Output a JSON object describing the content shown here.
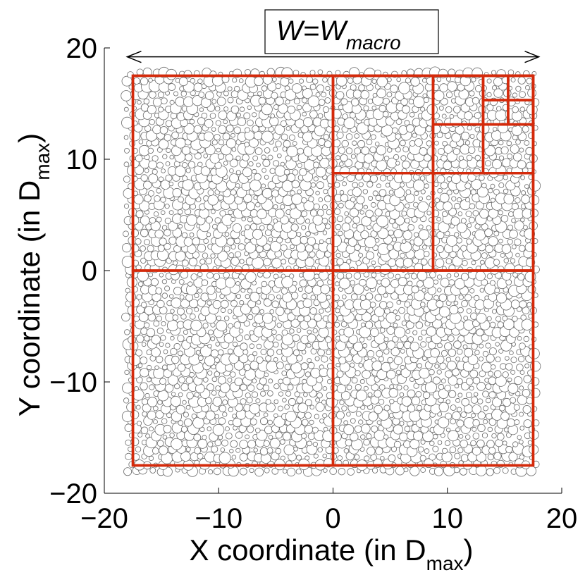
{
  "chart_data": {
    "type": "scatter",
    "description_note": "",
    "xlabel_main": "X coordinate (in D",
    "xlabel_sub": "max",
    "xlabel_close": ")",
    "ylabel_main": "Y coordinate (in D",
    "ylabel_sub": "max",
    "ylabel_close": ")",
    "xlim": [
      -20,
      20
    ],
    "ylim": [
      -20,
      20
    ],
    "xticks": [
      -20,
      -10,
      0,
      10,
      20
    ],
    "yticks": [
      -20,
      -10,
      0,
      10,
      20
    ],
    "xtick_labels": [
      "−20",
      "−10",
      "0",
      "10",
      "20"
    ],
    "ytick_labels": [
      "−20",
      "−10",
      "0",
      "10",
      "20"
    ],
    "annotation": {
      "label_main": "W=W",
      "label_sub": "macro",
      "arrow_from_x": -18,
      "arrow_to_x": 18,
      "arrow_y": 19.2
    },
    "packing_extent": {
      "x": [
        -18,
        18
      ],
      "y": [
        -18,
        18
      ]
    },
    "particle_diameter_range": [
      0.35,
      1.0
    ],
    "windows": [
      {
        "x0": -17.5,
        "y0": -17.5,
        "x1": 17.5,
        "y1": 17.5
      },
      {
        "x0": -17.5,
        "y0": 0,
        "x1": 0,
        "y1": 17.5
      },
      {
        "x0": 0,
        "y0": 0,
        "x1": 17.5,
        "y1": 17.5
      },
      {
        "x0": -17.5,
        "y0": -17.5,
        "x1": 0,
        "y1": 0
      },
      {
        "x0": 0,
        "y0": -17.5,
        "x1": 17.5,
        "y1": 0
      },
      {
        "x0": 0,
        "y0": 8.75,
        "x1": 8.75,
        "y1": 17.5
      },
      {
        "x0": 8.75,
        "y0": 8.75,
        "x1": 17.5,
        "y1": 17.5
      },
      {
        "x0": 0,
        "y0": 0,
        "x1": 8.75,
        "y1": 8.75
      },
      {
        "x0": 8.75,
        "y0": 0,
        "x1": 17.5,
        "y1": 8.75
      },
      {
        "x0": 8.75,
        "y0": 13.125,
        "x1": 13.125,
        "y1": 17.5
      },
      {
        "x0": 13.125,
        "y0": 13.125,
        "x1": 17.5,
        "y1": 17.5
      },
      {
        "x0": 8.75,
        "y0": 8.75,
        "x1": 13.125,
        "y1": 13.125
      },
      {
        "x0": 13.125,
        "y0": 8.75,
        "x1": 17.5,
        "y1": 13.125
      },
      {
        "x0": 13.125,
        "y0": 15.3125,
        "x1": 15.3125,
        "y1": 17.5
      },
      {
        "x0": 15.3125,
        "y0": 15.3125,
        "x1": 17.5,
        "y1": 17.5
      },
      {
        "x0": 13.125,
        "y0": 13.125,
        "x1": 15.3125,
        "y1": 15.3125
      },
      {
        "x0": 15.3125,
        "y0": 13.125,
        "x1": 17.5,
        "y1": 15.3125
      }
    ],
    "colors": {
      "window": "#d42a0b",
      "particle_stroke": "#6b6b6b",
      "particle_fill": "#ffffff",
      "axis": "#000000"
    }
  }
}
